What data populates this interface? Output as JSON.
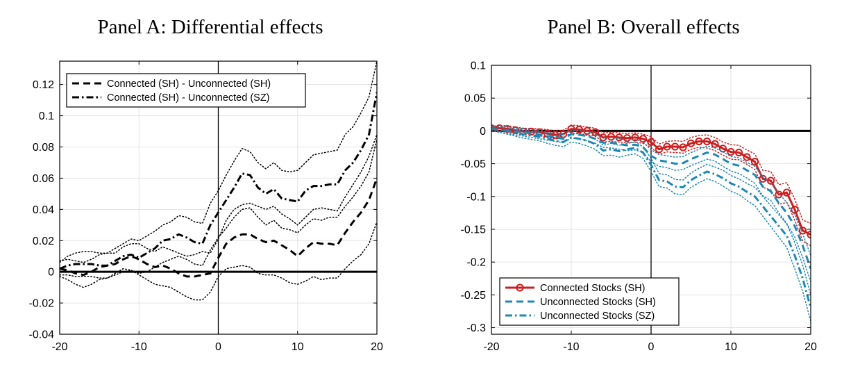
{
  "chart_data": [
    {
      "type": "line",
      "title": "Panel A: Differential effects",
      "xlabel": "",
      "ylabel": "",
      "xlim": [
        -20,
        20
      ],
      "ylim": [
        -0.04,
        0.135
      ],
      "xticks": [
        -20,
        -10,
        0,
        10,
        20
      ],
      "xtick_labels": [
        "-20",
        "-10",
        "0",
        "10",
        "20"
      ],
      "yticks": [
        -0.04,
        -0.02,
        0,
        0.02,
        0.04,
        0.06,
        0.08,
        0.1,
        0.12
      ],
      "ytick_labels": [
        "-0.04",
        "-0.02",
        "0",
        "0.02",
        "0.04",
        "0.06",
        "0.08",
        "0.1",
        "0.12"
      ],
      "grid": true,
      "legend_position": "top-left",
      "series": [
        {
          "name": "Connected (SH) - Unconnected (SH)",
          "style": "dashed",
          "color": "#000000",
          "x": [
            -20,
            -19,
            -18,
            -17,
            -16,
            -15,
            -14,
            -13,
            -12,
            -11,
            -10,
            -9,
            -8,
            -7,
            -6,
            -5,
            -4,
            -3,
            -2,
            -1,
            0,
            1,
            2,
            3,
            4,
            5,
            6,
            7,
            8,
            9,
            10,
            11,
            12,
            13,
            14,
            15,
            16,
            17,
            18,
            19,
            20
          ],
          "y": [
            0.002,
            0.001,
            -0.001,
            -0.002,
            0.0,
            0.003,
            0.004,
            0.005,
            0.008,
            0.01,
            0.008,
            0.005,
            0.003,
            0.004,
            0.002,
            -0.001,
            -0.003,
            -0.003,
            -0.002,
            -0.001,
            0.009,
            0.018,
            0.022,
            0.024,
            0.024,
            0.021,
            0.019,
            0.02,
            0.017,
            0.014,
            0.01,
            0.015,
            0.019,
            0.018,
            0.018,
            0.017,
            0.025,
            0.032,
            0.038,
            0.046,
            0.06
          ],
          "ci_lower": [
            -0.003,
            -0.005,
            -0.008,
            -0.01,
            -0.008,
            -0.005,
            -0.004,
            -0.002,
            0.0,
            0.001,
            -0.002,
            -0.005,
            -0.008,
            -0.009,
            -0.01,
            -0.013,
            -0.016,
            -0.018,
            -0.018,
            -0.013,
            -0.003,
            0.002,
            0.003,
            0.004,
            0.003,
            -0.001,
            -0.002,
            -0.002,
            -0.004,
            -0.007,
            -0.008,
            -0.006,
            -0.003,
            -0.005,
            -0.004,
            -0.004,
            0.002,
            0.007,
            0.011,
            0.018,
            0.032
          ],
          "ci_upper": [
            0.007,
            0.008,
            0.007,
            0.006,
            0.008,
            0.011,
            0.012,
            0.012,
            0.016,
            0.018,
            0.018,
            0.015,
            0.013,
            0.016,
            0.014,
            0.012,
            0.01,
            0.011,
            0.013,
            0.012,
            0.021,
            0.033,
            0.04,
            0.043,
            0.044,
            0.042,
            0.04,
            0.042,
            0.037,
            0.034,
            0.03,
            0.035,
            0.04,
            0.041,
            0.04,
            0.039,
            0.048,
            0.056,
            0.064,
            0.074,
            0.088
          ]
        },
        {
          "name": "Connected (SH) - Unconnected (SZ)",
          "style": "dashdot",
          "color": "#000000",
          "x": [
            -20,
            -19,
            -18,
            -17,
            -16,
            -15,
            -14,
            -13,
            -12,
            -11,
            -10,
            -9,
            -8,
            -7,
            -6,
            -5,
            -4,
            -3,
            -2,
            -1,
            0,
            1,
            2,
            3,
            4,
            5,
            6,
            7,
            8,
            9,
            10,
            11,
            12,
            13,
            14,
            15,
            16,
            17,
            18,
            19,
            20
          ],
          "y": [
            0.002,
            0.004,
            0.005,
            0.005,
            0.005,
            0.004,
            0.004,
            0.007,
            0.01,
            0.011,
            0.009,
            0.012,
            0.015,
            0.02,
            0.021,
            0.024,
            0.022,
            0.019,
            0.018,
            0.03,
            0.038,
            0.046,
            0.054,
            0.063,
            0.062,
            0.054,
            0.05,
            0.053,
            0.047,
            0.046,
            0.045,
            0.052,
            0.055,
            0.055,
            0.056,
            0.056,
            0.065,
            0.07,
            0.078,
            0.088,
            0.115
          ],
          "ci_lower": [
            -0.002,
            -0.002,
            -0.003,
            -0.003,
            -0.003,
            -0.004,
            -0.004,
            -0.001,
            0.002,
            0.001,
            -0.001,
            0.0,
            0.003,
            0.006,
            0.008,
            0.01,
            0.008,
            0.005,
            0.004,
            0.014,
            0.022,
            0.028,
            0.035,
            0.04,
            0.041,
            0.035,
            0.03,
            0.033,
            0.028,
            0.027,
            0.025,
            0.03,
            0.034,
            0.033,
            0.035,
            0.035,
            0.042,
            0.048,
            0.055,
            0.064,
            0.085
          ],
          "ci_upper": [
            0.006,
            0.01,
            0.012,
            0.013,
            0.013,
            0.012,
            0.012,
            0.015,
            0.018,
            0.021,
            0.02,
            0.023,
            0.026,
            0.03,
            0.032,
            0.036,
            0.035,
            0.032,
            0.031,
            0.044,
            0.052,
            0.062,
            0.071,
            0.079,
            0.077,
            0.07,
            0.066,
            0.07,
            0.065,
            0.064,
            0.065,
            0.07,
            0.075,
            0.076,
            0.077,
            0.078,
            0.088,
            0.093,
            0.102,
            0.112,
            0.135
          ]
        }
      ]
    },
    {
      "type": "line",
      "title": "Panel B: Overall effects",
      "xlabel": "",
      "ylabel": "",
      "xlim": [
        -20,
        20
      ],
      "ylim": [
        -0.31,
        0.1
      ],
      "xticks": [
        -20,
        -10,
        0,
        10,
        20
      ],
      "xtick_labels": [
        "-20",
        "-10",
        "0",
        "10",
        "20"
      ],
      "yticks": [
        0.1,
        0.05,
        0,
        -0.05,
        -0.1,
        -0.15,
        -0.2,
        -0.25,
        -0.3
      ],
      "ytick_labels": [
        "0.1",
        "0.05",
        "0",
        "-0.05",
        "-0.1",
        "-0.15",
        "-0.2",
        "-0.25",
        "-0.3"
      ],
      "grid": true,
      "legend_position": "bottom-left",
      "series": [
        {
          "name": "Connected Stocks (SH)",
          "style": "solid-circle",
          "color": "#cc1f1f",
          "x": [
            -20,
            -19,
            -18,
            -17,
            -16,
            -15,
            -14,
            -13,
            -12,
            -11,
            -10,
            -9,
            -8,
            -7,
            -6,
            -5,
            -4,
            -3,
            -2,
            -1,
            0,
            1,
            2,
            3,
            4,
            5,
            6,
            7,
            8,
            9,
            10,
            11,
            12,
            13,
            14,
            15,
            16,
            17,
            18,
            19,
            20
          ],
          "y": [
            0.004,
            0.004,
            0.003,
            0.001,
            -0.001,
            -0.001,
            -0.002,
            -0.004,
            -0.006,
            -0.005,
            0.003,
            0.002,
            0.0,
            -0.002,
            -0.01,
            -0.009,
            -0.01,
            -0.011,
            -0.01,
            -0.012,
            -0.017,
            -0.028,
            -0.024,
            -0.024,
            -0.025,
            -0.019,
            -0.016,
            -0.016,
            -0.02,
            -0.027,
            -0.032,
            -0.033,
            -0.04,
            -0.047,
            -0.073,
            -0.076,
            -0.097,
            -0.094,
            -0.12,
            -0.152,
            -0.158
          ],
          "ci_lower": [
            0.001,
            0.0,
            -0.002,
            -0.004,
            -0.006,
            -0.006,
            -0.007,
            -0.01,
            -0.012,
            -0.011,
            -0.003,
            -0.004,
            -0.006,
            -0.008,
            -0.017,
            -0.016,
            -0.017,
            -0.018,
            -0.017,
            -0.019,
            -0.025,
            -0.036,
            -0.032,
            -0.033,
            -0.034,
            -0.028,
            -0.025,
            -0.026,
            -0.03,
            -0.037,
            -0.043,
            -0.044,
            -0.051,
            -0.059,
            -0.086,
            -0.09,
            -0.112,
            -0.109,
            -0.136,
            -0.168,
            -0.175
          ],
          "ci_upper": [
            0.007,
            0.008,
            0.008,
            0.006,
            0.004,
            0.004,
            0.003,
            0.002,
            0.0,
            0.001,
            0.009,
            0.008,
            0.006,
            0.004,
            -0.003,
            -0.002,
            -0.003,
            -0.004,
            -0.003,
            -0.005,
            -0.009,
            -0.02,
            -0.016,
            -0.015,
            -0.016,
            -0.01,
            -0.007,
            -0.006,
            -0.01,
            -0.017,
            -0.021,
            -0.022,
            -0.029,
            -0.035,
            -0.06,
            -0.062,
            -0.082,
            -0.079,
            -0.104,
            -0.136,
            -0.141
          ]
        },
        {
          "name": "Unconnected Stocks (SH)",
          "style": "dashed",
          "color": "#1e88b4",
          "x": [
            -20,
            -19,
            -18,
            -17,
            -16,
            -15,
            -14,
            -13,
            -12,
            -11,
            -10,
            -9,
            -8,
            -7,
            -6,
            -5,
            -4,
            -3,
            -2,
            -1,
            0,
            1,
            2,
            3,
            4,
            5,
            6,
            7,
            8,
            9,
            10,
            11,
            12,
            13,
            14,
            15,
            16,
            17,
            18,
            19,
            20
          ],
          "y": [
            0.003,
            0.002,
            0.001,
            -0.001,
            -0.002,
            -0.004,
            -0.006,
            -0.008,
            -0.01,
            -0.012,
            -0.005,
            -0.006,
            -0.008,
            -0.012,
            -0.018,
            -0.018,
            -0.02,
            -0.022,
            -0.021,
            -0.025,
            -0.038,
            -0.045,
            -0.047,
            -0.05,
            -0.049,
            -0.043,
            -0.038,
            -0.033,
            -0.036,
            -0.043,
            -0.05,
            -0.053,
            -0.06,
            -0.067,
            -0.085,
            -0.092,
            -0.11,
            -0.125,
            -0.145,
            -0.175,
            -0.21
          ],
          "ci_lower": [
            0.0,
            -0.002,
            -0.004,
            -0.006,
            -0.008,
            -0.01,
            -0.012,
            -0.014,
            -0.016,
            -0.018,
            -0.011,
            -0.012,
            -0.015,
            -0.019,
            -0.025,
            -0.026,
            -0.028,
            -0.03,
            -0.029,
            -0.033,
            -0.047,
            -0.054,
            -0.056,
            -0.06,
            -0.059,
            -0.053,
            -0.048,
            -0.043,
            -0.046,
            -0.054,
            -0.061,
            -0.065,
            -0.072,
            -0.08,
            -0.099,
            -0.106,
            -0.125,
            -0.141,
            -0.162,
            -0.193,
            -0.23
          ],
          "ci_upper": [
            0.006,
            0.006,
            0.006,
            0.004,
            0.004,
            0.002,
            0.0,
            -0.002,
            -0.004,
            -0.006,
            0.001,
            0.0,
            -0.001,
            -0.005,
            -0.011,
            -0.01,
            -0.012,
            -0.014,
            -0.013,
            -0.017,
            -0.029,
            -0.036,
            -0.038,
            -0.04,
            -0.039,
            -0.033,
            -0.028,
            -0.023,
            -0.026,
            -0.032,
            -0.039,
            -0.041,
            -0.048,
            -0.054,
            -0.071,
            -0.078,
            -0.095,
            -0.109,
            -0.128,
            -0.157,
            -0.19
          ]
        },
        {
          "name": "Unconnected Stocks (SZ)",
          "style": "dashdot",
          "color": "#1e88b4",
          "x": [
            -20,
            -19,
            -18,
            -17,
            -16,
            -15,
            -14,
            -13,
            -12,
            -11,
            -10,
            -9,
            -8,
            -7,
            -6,
            -5,
            -4,
            -3,
            -2,
            -1,
            0,
            1,
            2,
            3,
            4,
            5,
            6,
            7,
            8,
            9,
            10,
            11,
            12,
            13,
            14,
            15,
            16,
            17,
            18,
            19,
            20
          ],
          "y": [
            0.003,
            0.002,
            0.0,
            -0.003,
            -0.005,
            -0.007,
            -0.009,
            -0.012,
            -0.015,
            -0.017,
            -0.01,
            -0.012,
            -0.015,
            -0.02,
            -0.03,
            -0.028,
            -0.031,
            -0.028,
            -0.026,
            -0.033,
            -0.052,
            -0.075,
            -0.077,
            -0.085,
            -0.086,
            -0.075,
            -0.068,
            -0.062,
            -0.066,
            -0.072,
            -0.08,
            -0.085,
            -0.093,
            -0.1,
            -0.115,
            -0.13,
            -0.145,
            -0.16,
            -0.19,
            -0.225,
            -0.27
          ],
          "ci_lower": [
            0.0,
            -0.002,
            -0.005,
            -0.008,
            -0.011,
            -0.013,
            -0.015,
            -0.019,
            -0.022,
            -0.024,
            -0.017,
            -0.019,
            -0.023,
            -0.028,
            -0.038,
            -0.037,
            -0.04,
            -0.037,
            -0.035,
            -0.042,
            -0.062,
            -0.085,
            -0.087,
            -0.096,
            -0.097,
            -0.086,
            -0.079,
            -0.073,
            -0.077,
            -0.084,
            -0.092,
            -0.097,
            -0.106,
            -0.114,
            -0.13,
            -0.146,
            -0.162,
            -0.178,
            -0.21,
            -0.245,
            -0.29
          ],
          "ci_upper": [
            0.006,
            0.006,
            0.005,
            0.002,
            0.001,
            -0.001,
            -0.003,
            -0.005,
            -0.008,
            -0.01,
            -0.003,
            -0.005,
            -0.007,
            -0.012,
            -0.022,
            -0.019,
            -0.022,
            -0.019,
            -0.017,
            -0.024,
            -0.042,
            -0.065,
            -0.067,
            -0.074,
            -0.075,
            -0.064,
            -0.057,
            -0.051,
            -0.055,
            -0.06,
            -0.068,
            -0.073,
            -0.08,
            -0.086,
            -0.1,
            -0.114,
            -0.128,
            -0.142,
            -0.17,
            -0.205,
            -0.25
          ]
        }
      ]
    }
  ]
}
